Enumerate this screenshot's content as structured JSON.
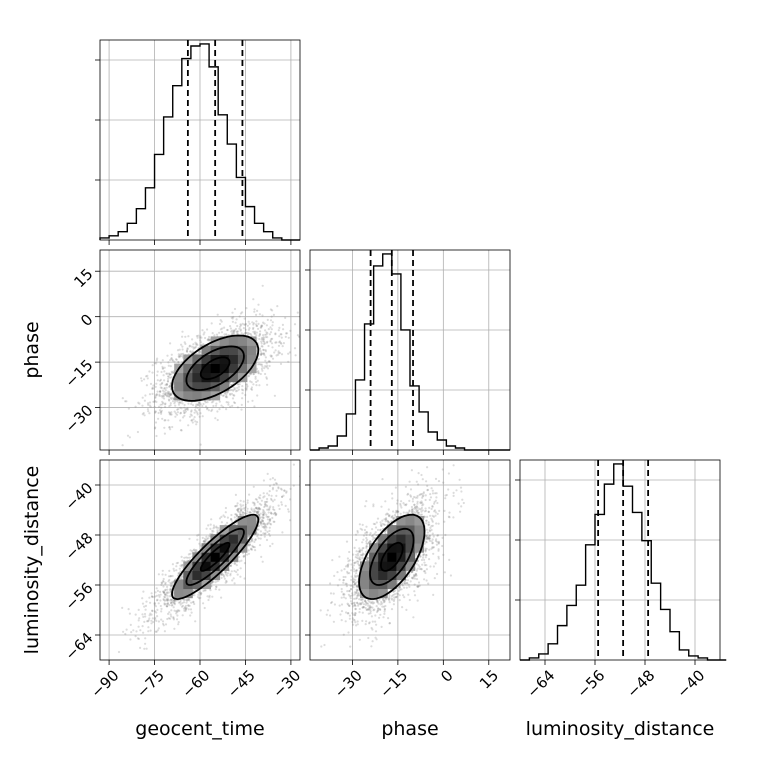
{
  "chart_data": {
    "type": "corner",
    "parameters": [
      {
        "name": "geocent_time",
        "label": "geocent_time",
        "range": [
          -93,
          -27
        ],
        "ticks": [
          -90,
          -75,
          -60,
          -45,
          -30
        ],
        "tick_labels": [
          "−90",
          "−75",
          "−60",
          "−45",
          "−30"
        ],
        "quantiles": [
          -64,
          -55,
          -46
        ],
        "hist": {
          "bin_start": -93,
          "bin_width": 3,
          "counts": [
            1,
            2,
            4,
            8,
            15,
            25,
            41,
            59,
            74,
            87,
            93,
            94,
            83,
            60,
            46,
            30,
            16,
            8,
            4,
            1,
            0,
            0
          ]
        }
      },
      {
        "name": "phase",
        "label": "phase",
        "range": [
          -44,
          22
        ],
        "ticks": [
          -30,
          -15,
          0,
          15
        ],
        "tick_labels": [
          "−30",
          "−15",
          "0",
          "15"
        ],
        "quantiles": [
          -24,
          -17,
          -10
        ],
        "hist": {
          "bin_start": -44,
          "bin_width": 3,
          "counts": [
            0,
            1,
            2,
            7,
            18,
            35,
            63,
            92,
            98,
            88,
            60,
            32,
            19,
            9,
            5,
            2,
            1,
            0,
            0,
            0,
            0,
            0
          ]
        }
      },
      {
        "name": "luminosity_distance",
        "label": "luminosity_distance",
        "range": [
          -68,
          -36
        ],
        "ticks": [
          -64,
          -56,
          -48,
          -40
        ],
        "tick_labels": [
          "−64",
          "−56",
          "−48",
          "−40"
        ],
        "quantiles": [
          -55.5,
          -51.5,
          -47.5
        ],
        "hist": {
          "bin_start": -68,
          "bin_width": 1.5,
          "counts": [
            0,
            1,
            3,
            8,
            17,
            27,
            37,
            57,
            72,
            87,
            97,
            86,
            73,
            59,
            38,
            25,
            14,
            5,
            2,
            1,
            0,
            0
          ]
        }
      }
    ],
    "pairs": [
      {
        "x": "geocent_time",
        "y": "phase",
        "mean": [
          -55,
          -17
        ],
        "sd": [
          9.5,
          7.2
        ],
        "corr": 0.55,
        "levels": [
          0.5,
          1.0,
          1.5
        ]
      },
      {
        "x": "geocent_time",
        "y": "luminosity_distance",
        "mean": [
          -55,
          -51.5
        ],
        "sd": [
          9.5,
          4.5
        ],
        "corr": 0.88,
        "levels": [
          0.5,
          1.0,
          1.5
        ]
      },
      {
        "x": "phase",
        "y": "luminosity_distance",
        "mean": [
          -17,
          -51.5
        ],
        "sd": [
          7.2,
          4.5
        ],
        "corr": 0.6,
        "levels": [
          0.5,
          1.0,
          1.5
        ]
      }
    ],
    "grid": true
  }
}
